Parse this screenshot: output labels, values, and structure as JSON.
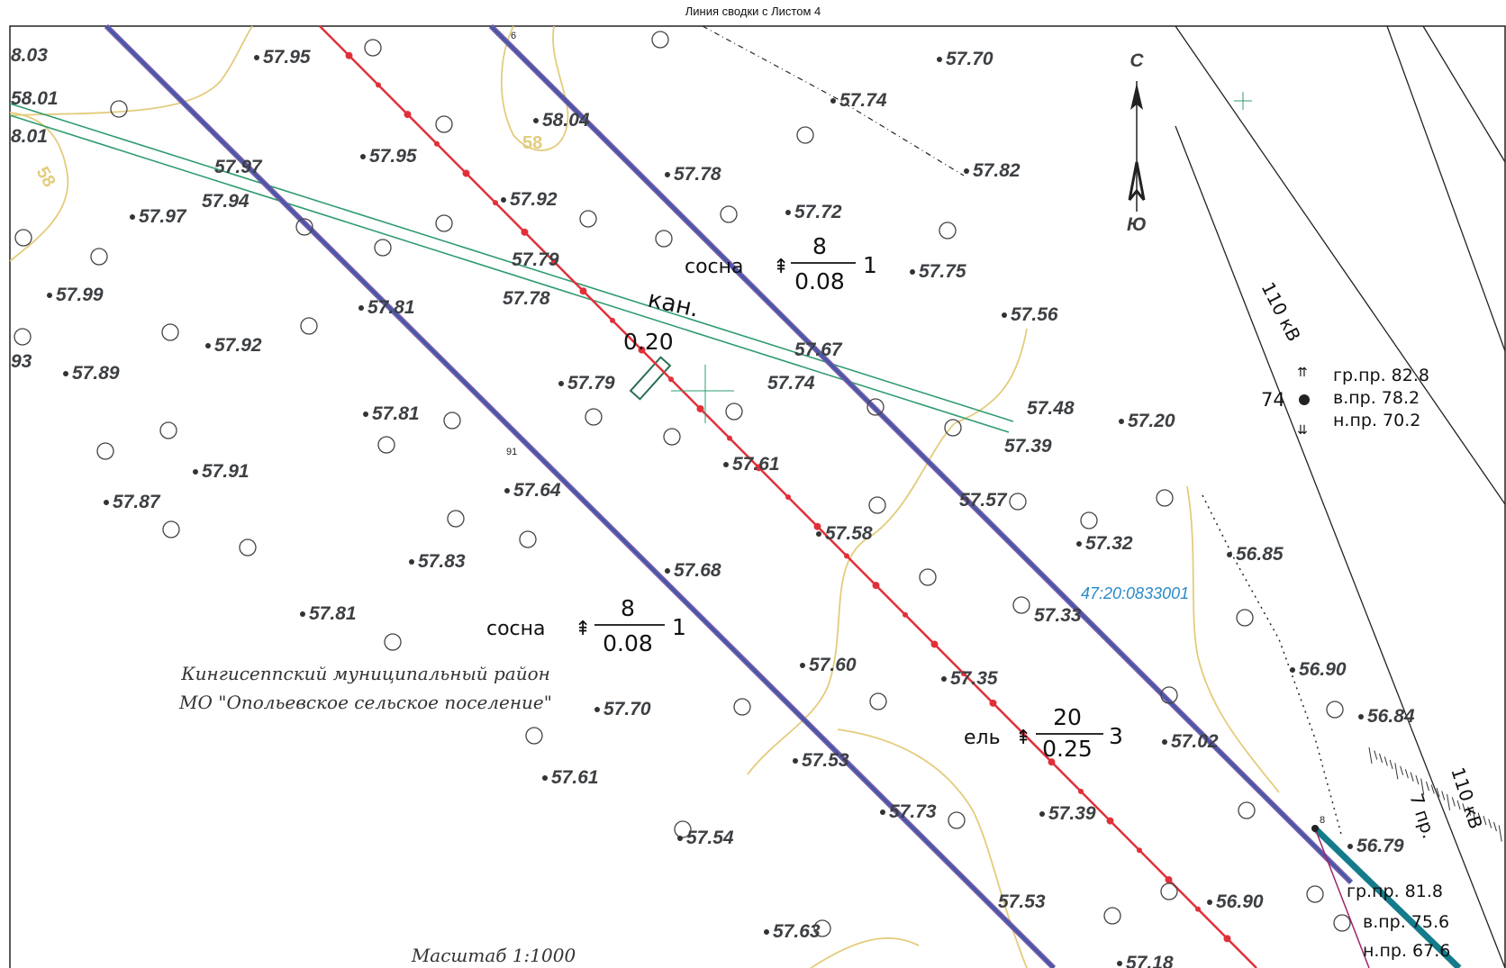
{
  "header": {
    "title": "Линия сводки с Листом 4"
  },
  "map": {
    "north_label": "С",
    "south_label": "Ю",
    "scale_label": "Масштаб 1:1000",
    "district_line1": "Кингисеппский муниципальный район",
    "district_line2": "МО \"Опольевское сельское поселение\"",
    "cadastral_number": "47:20:0833001",
    "canal_label": "кан.",
    "canal_width": "0.20",
    "power_line_label": "110 кВ",
    "power_line_label2": "110 кВ",
    "span_label": "7 пр.",
    "pole_number": "74",
    "pole_74": {
      "gr": "гр.пр. 82.8",
      "v": "в.пр. 78.2",
      "n": "н.пр. 70.2"
    },
    "pole_8": {
      "gr": "гр.пр. 81.8",
      "v": "в.пр. 75.6",
      "n": "н.пр. 67.6"
    },
    "point_labels": [
      "6",
      "91",
      "8"
    ],
    "trees": [
      {
        "species": "сосна",
        "height": "8",
        "diameter": "0.08",
        "count": "1"
      },
      {
        "species": "сосна",
        "height": "8",
        "diameter": "0.08",
        "count": "1"
      },
      {
        "species": "ель",
        "height": "20",
        "diameter": "0.25",
        "count": "3"
      }
    ],
    "contour_labels": [
      "58",
      "58"
    ],
    "elevations": [
      "8.03",
      "57.95",
      "58.01",
      "8.01",
      "57.97",
      "57.94",
      "57.97",
      "57.99",
      "57.95",
      "57.92",
      "57.79",
      "57.78",
      "58.04",
      "57.78",
      "57.72",
      "57.74",
      "57.70",
      "57.82",
      "57.75",
      "57.56",
      "57.81",
      "57.92",
      "57.89",
      "93",
      "57.81",
      "57.79",
      "57.67",
      "57.74",
      "57.48",
      "57.39",
      "57.20",
      "57.91",
      "57.87",
      "57.64",
      "57.61",
      "57.57",
      "57.32",
      "56.85",
      "57.58",
      "57.83",
      "57.68",
      "57.81",
      "57.33",
      "57.60",
      "57.35",
      "56.90",
      "57.70",
      "56.84",
      "57.53",
      "57.02",
      "57.61",
      "57.73",
      "57.39",
      "57.54",
      "56.79",
      "57.53",
      "56.90",
      "57.63",
      "57.18"
    ]
  }
}
